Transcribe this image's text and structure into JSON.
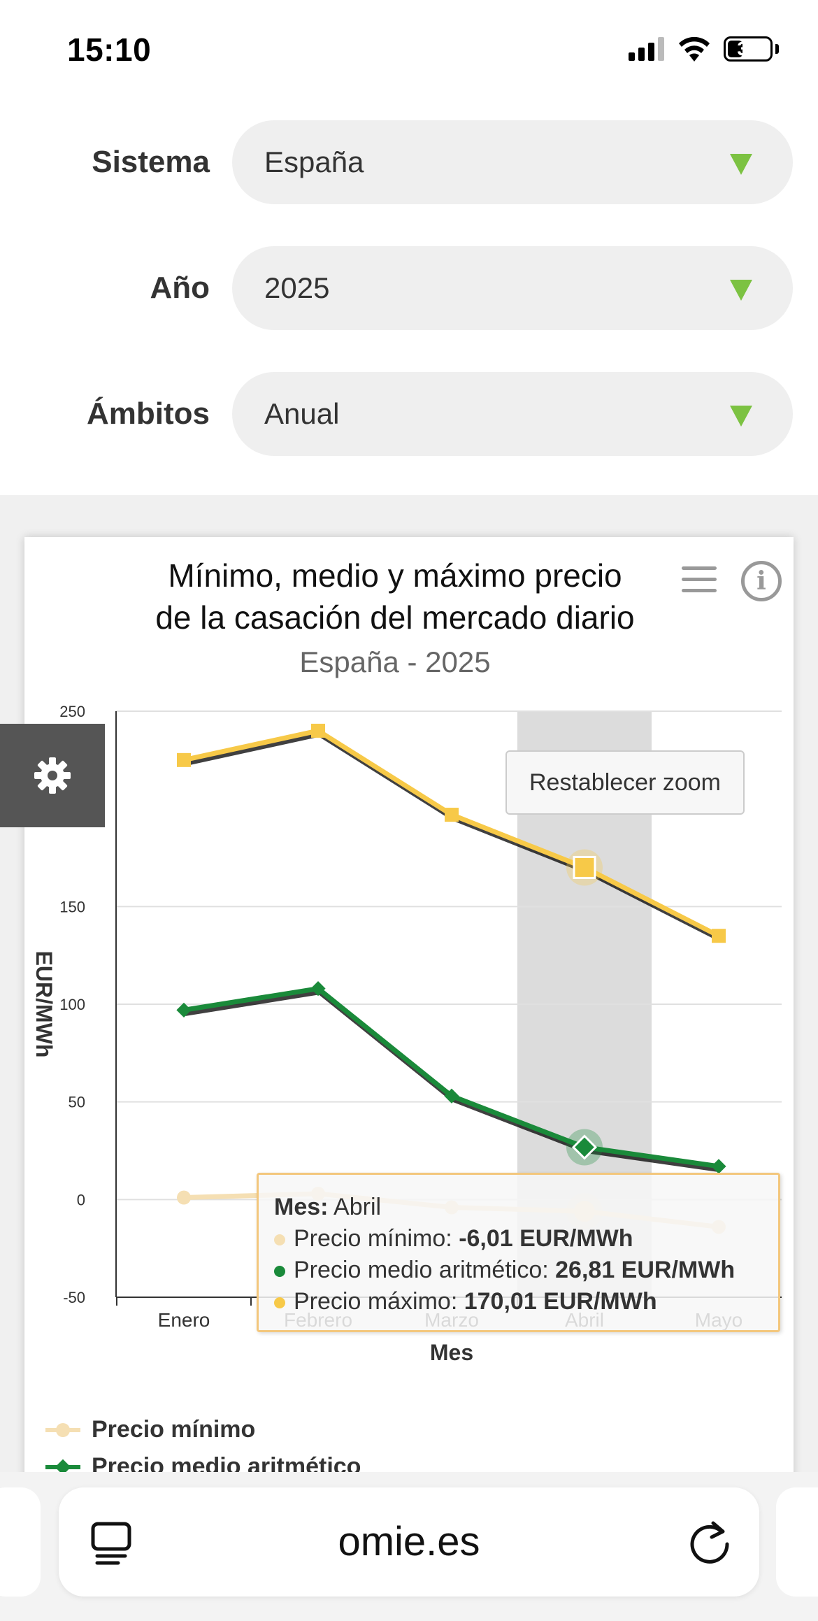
{
  "status_bar": {
    "time": "15:10",
    "battery": "37",
    "battery_level": 0.37
  },
  "form": {
    "sistema": {
      "label": "Sistema",
      "value": "España"
    },
    "anio": {
      "label": "Año",
      "value": "2025"
    },
    "ambitos": {
      "label": "Ámbitos",
      "value": "Anual"
    }
  },
  "chart": {
    "title_line1": "Mínimo, medio y máximo precio",
    "title_line2": "de la casación del mercado diario",
    "subtitle": "España - 2025",
    "reset_zoom": "Restablecer zoom",
    "colors": {
      "min": "#f5dfb3",
      "mean": "#1a8a3a",
      "max": "#f7c948",
      "highlight": "#dcdcdc"
    }
  },
  "chart_data": {
    "type": "line",
    "title": "Mínimo, medio y máximo precio de la casación del mercado diario",
    "subtitle": "España - 2025",
    "xlabel": "Mes",
    "ylabel": "EUR/MWh",
    "categories": [
      "Enero",
      "Febrero",
      "Marzo",
      "Abril",
      "Mayo"
    ],
    "y_ticks": [
      "250",
      "150",
      "100",
      "50",
      "0",
      "-50"
    ],
    "ylim": [
      -50,
      250
    ],
    "series": [
      {
        "name": "Precio mínimo",
        "values": [
          1,
          3,
          -4,
          -6.01,
          -14
        ]
      },
      {
        "name": "Precio medio aritmético",
        "values": [
          97,
          108,
          53,
          26.81,
          17
        ]
      },
      {
        "name": "Precio máximo",
        "values": [
          225,
          240,
          197,
          170.01,
          135
        ]
      }
    ],
    "highlighted_category": "Abril",
    "grid": true,
    "legend": "bottom-left"
  },
  "tooltip": {
    "mes_label": "Mes:",
    "mes_value": "Abril",
    "min_label": "Precio mínimo:",
    "min_value": "-6,01 EUR/MWh",
    "mean_label": "Precio medio aritmético:",
    "mean_value": "26,81 EUR/MWh",
    "max_label": "Precio máximo:",
    "max_value": "170,01 EUR/MWh"
  },
  "legend": {
    "min": "Precio mínimo",
    "mean": "Precio medio aritmético"
  },
  "browser": {
    "url": "omie.es"
  },
  "icons": {
    "signal": "signal-icon",
    "wifi": "wifi-icon",
    "battery": "battery-icon",
    "settings": "gear-icon",
    "menu": "hamburger-menu-icon",
    "info": "info-icon",
    "reader": "reader-mode-icon",
    "reload": "reload-icon"
  }
}
